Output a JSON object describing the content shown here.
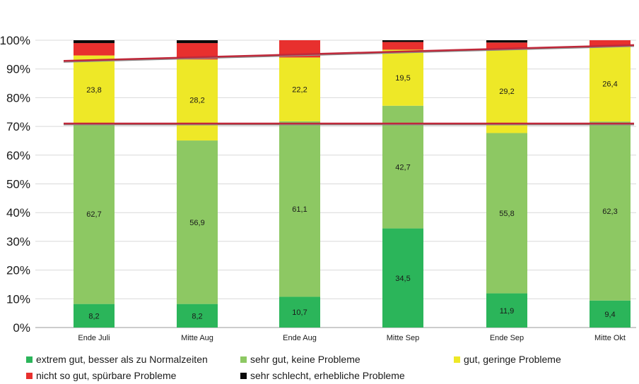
{
  "chart_data": {
    "type": "bar",
    "stacked": true,
    "percent_stacked": true,
    "categories": [
      "Ende Juli",
      "Mitte Aug",
      "Ende Aug",
      "Mitte Sep",
      "Ende Sep",
      "Mitte Okt"
    ],
    "ylim": [
      0,
      100
    ],
    "yticks": [
      "0%",
      "10%",
      "20%",
      "30%",
      "40%",
      "50%",
      "60%",
      "70%",
      "80%",
      "90%",
      "100%"
    ],
    "grid": true,
    "legend_position": "bottom",
    "series": [
      {
        "name": "extrem gut, besser als zu Normalzeiten",
        "color": "#2bb55a",
        "values": [
          8.2,
          8.2,
          10.7,
          34.5,
          11.9,
          9.4
        ],
        "labels": [
          "8,2",
          "8,2",
          "10,7",
          "34,5",
          "11,9",
          "9,4"
        ]
      },
      {
        "name": "sehr gut, keine Probleme",
        "color": "#8dc863",
        "values": [
          62.7,
          56.9,
          61.1,
          42.7,
          55.8,
          62.3
        ],
        "labels": [
          "62,7",
          "56,9",
          "61,1",
          "42,7",
          "55,8",
          "62,3"
        ]
      },
      {
        "name": "gut, geringe Probleme",
        "color": "#eee827",
        "values": [
          23.8,
          28.2,
          22.2,
          19.5,
          29.2,
          26.4
        ],
        "labels": [
          "23,8",
          "28,2",
          "22,2",
          "19,5",
          "29,2",
          "26,4"
        ]
      },
      {
        "name": "nicht so gut, spürbare Probleme",
        "color": "#e8302e",
        "values": [
          4.3,
          5.7,
          6.0,
          2.7,
          2.3,
          1.9
        ],
        "labels": [
          "",
          "",
          "",
          "",
          "",
          ""
        ]
      },
      {
        "name": "sehr schlecht, erhebliche Probleme",
        "color": "#0a0a0a",
        "values": [
          1.0,
          1.0,
          0.0,
          0.6,
          0.8,
          0.0
        ],
        "labels": [
          "",
          "",
          "",
          "",
          "",
          ""
        ]
      }
    ],
    "reference_lines": [
      {
        "color": "#c0283a",
        "start": 92.8,
        "end": 98.3
      },
      {
        "color": "#c0283a",
        "start": 71.0,
        "end": 71.0
      }
    ]
  }
}
